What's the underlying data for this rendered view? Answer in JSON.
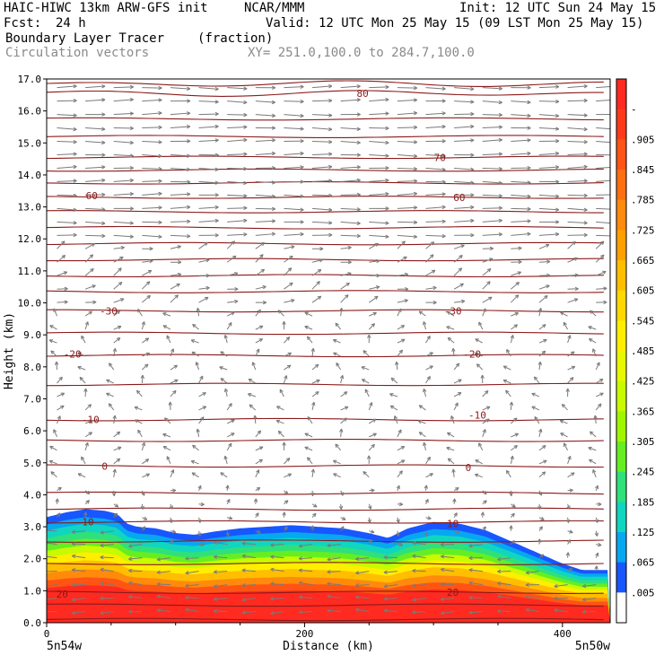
{
  "header": {
    "model": "HAIC-HIWC 13km ARW-GFS init",
    "org": "NCAR/MMM",
    "init": "Init: 12 UTC Sun 24 May 15",
    "fcst_label": "Fcst:",
    "fcst_value": "24 h",
    "valid": "Valid: 12 UTC Mon 25 May 15 (09 LST Mon 25 May 15)",
    "field": "Boundary Layer Tracer",
    "field_units": "(fraction)",
    "vectors": "Circulation vectors",
    "xy": "XY= 251.0,100.0 to 284.7,100.0"
  },
  "chart_data": {
    "type": "heatmap",
    "title": "Boundary Layer Tracer",
    "units": "(fraction)",
    "xlabel": "Distance (km)",
    "ylabel": "Height (km)",
    "xlim": [
      0,
      437
    ],
    "ylim": [
      0,
      17
    ],
    "x_ticks": [
      "0",
      "200",
      "400"
    ],
    "y_ticks": [
      "0.0",
      "1.0",
      "2.0",
      "3.0",
      "4.0",
      "5.0",
      "6.0",
      "7.0",
      "8.0",
      "9.0",
      "10.0",
      "11.0",
      "12.0",
      "13.0",
      "14.0",
      "15.0",
      "16.0",
      "17.0"
    ],
    "left_endpoint": "5n54w",
    "right_endpoint": "5n50w",
    "colorbar": {
      "labels": [
        "-",
        ".905",
        ".845",
        ".785",
        ".725",
        ".665",
        ".605",
        ".545",
        ".485",
        ".425",
        ".365",
        ".305",
        ".245",
        ".185",
        ".125",
        ".065",
        ".005"
      ],
      "colors": [
        "#ff2a20",
        "#ff3a1a",
        "#ff5414",
        "#ff6e10",
        "#ff8a0c",
        "#ffa000",
        "#ffbe00",
        "#ffd800",
        "#ffee00",
        "#e8f800",
        "#c8fa00",
        "#a0f600",
        "#66ee22",
        "#30e07a",
        "#10d6c0",
        "#06a8f0",
        "#1856ff",
        "#ffffff"
      ]
    },
    "tracer_top_km": {
      "x": [
        0,
        15,
        30,
        45,
        55,
        62,
        70,
        85,
        100,
        115,
        130,
        150,
        170,
        190,
        210,
        230,
        250,
        265,
        280,
        300,
        320,
        340,
        360,
        380,
        400,
        415,
        437
      ],
      "y": [
        3.3,
        3.45,
        3.55,
        3.5,
        3.4,
        3.1,
        3.0,
        2.95,
        2.8,
        2.75,
        2.85,
        2.95,
        3.0,
        3.05,
        3.0,
        2.95,
        2.8,
        2.65,
        2.95,
        3.15,
        3.1,
        2.9,
        2.55,
        2.2,
        1.85,
        1.65,
        1.65
      ]
    },
    "isotherms_c": [
      {
        "label": "60",
        "x": 35,
        "y": 13.35
      },
      {
        "label": "60",
        "x": 320,
        "y": 13.3
      },
      {
        "label": "70",
        "x": 305,
        "y": 14.55
      },
      {
        "label": "80",
        "x": 245,
        "y": 16.55
      },
      {
        "label": "-30",
        "x": 48,
        "y": 9.75
      },
      {
        "label": "-30",
        "x": 315,
        "y": 9.75
      },
      {
        "label": "-20",
        "x": 20,
        "y": 8.4
      },
      {
        "label": "-20",
        "x": 330,
        "y": 8.4
      },
      {
        "label": "-10",
        "x": 34,
        "y": 6.35
      },
      {
        "label": "-10",
        "x": 334,
        "y": 6.5
      },
      {
        "label": "0",
        "x": 45,
        "y": 4.9
      },
      {
        "label": "0",
        "x": 327,
        "y": 4.85
      },
      {
        "label": "10",
        "x": 32,
        "y": 3.15
      },
      {
        "label": "10",
        "x": 315,
        "y": 3.1
      },
      {
        "label": "20",
        "x": 12,
        "y": 0.9
      },
      {
        "label": "20",
        "x": 315,
        "y": 0.95
      }
    ],
    "contour_levels_km": [
      0.1,
      0.55,
      0.95,
      1.85,
      2.55,
      3.15,
      3.55,
      4.05,
      4.9,
      5.7,
      6.35,
      7.45,
      8.35,
      9.05,
      9.75,
      10.35,
      10.85,
      11.35,
      11.85,
      12.35,
      12.85,
      13.3,
      13.75,
      14.15,
      14.55,
      15.2,
      15.75,
      16.55,
      16.85
    ]
  }
}
